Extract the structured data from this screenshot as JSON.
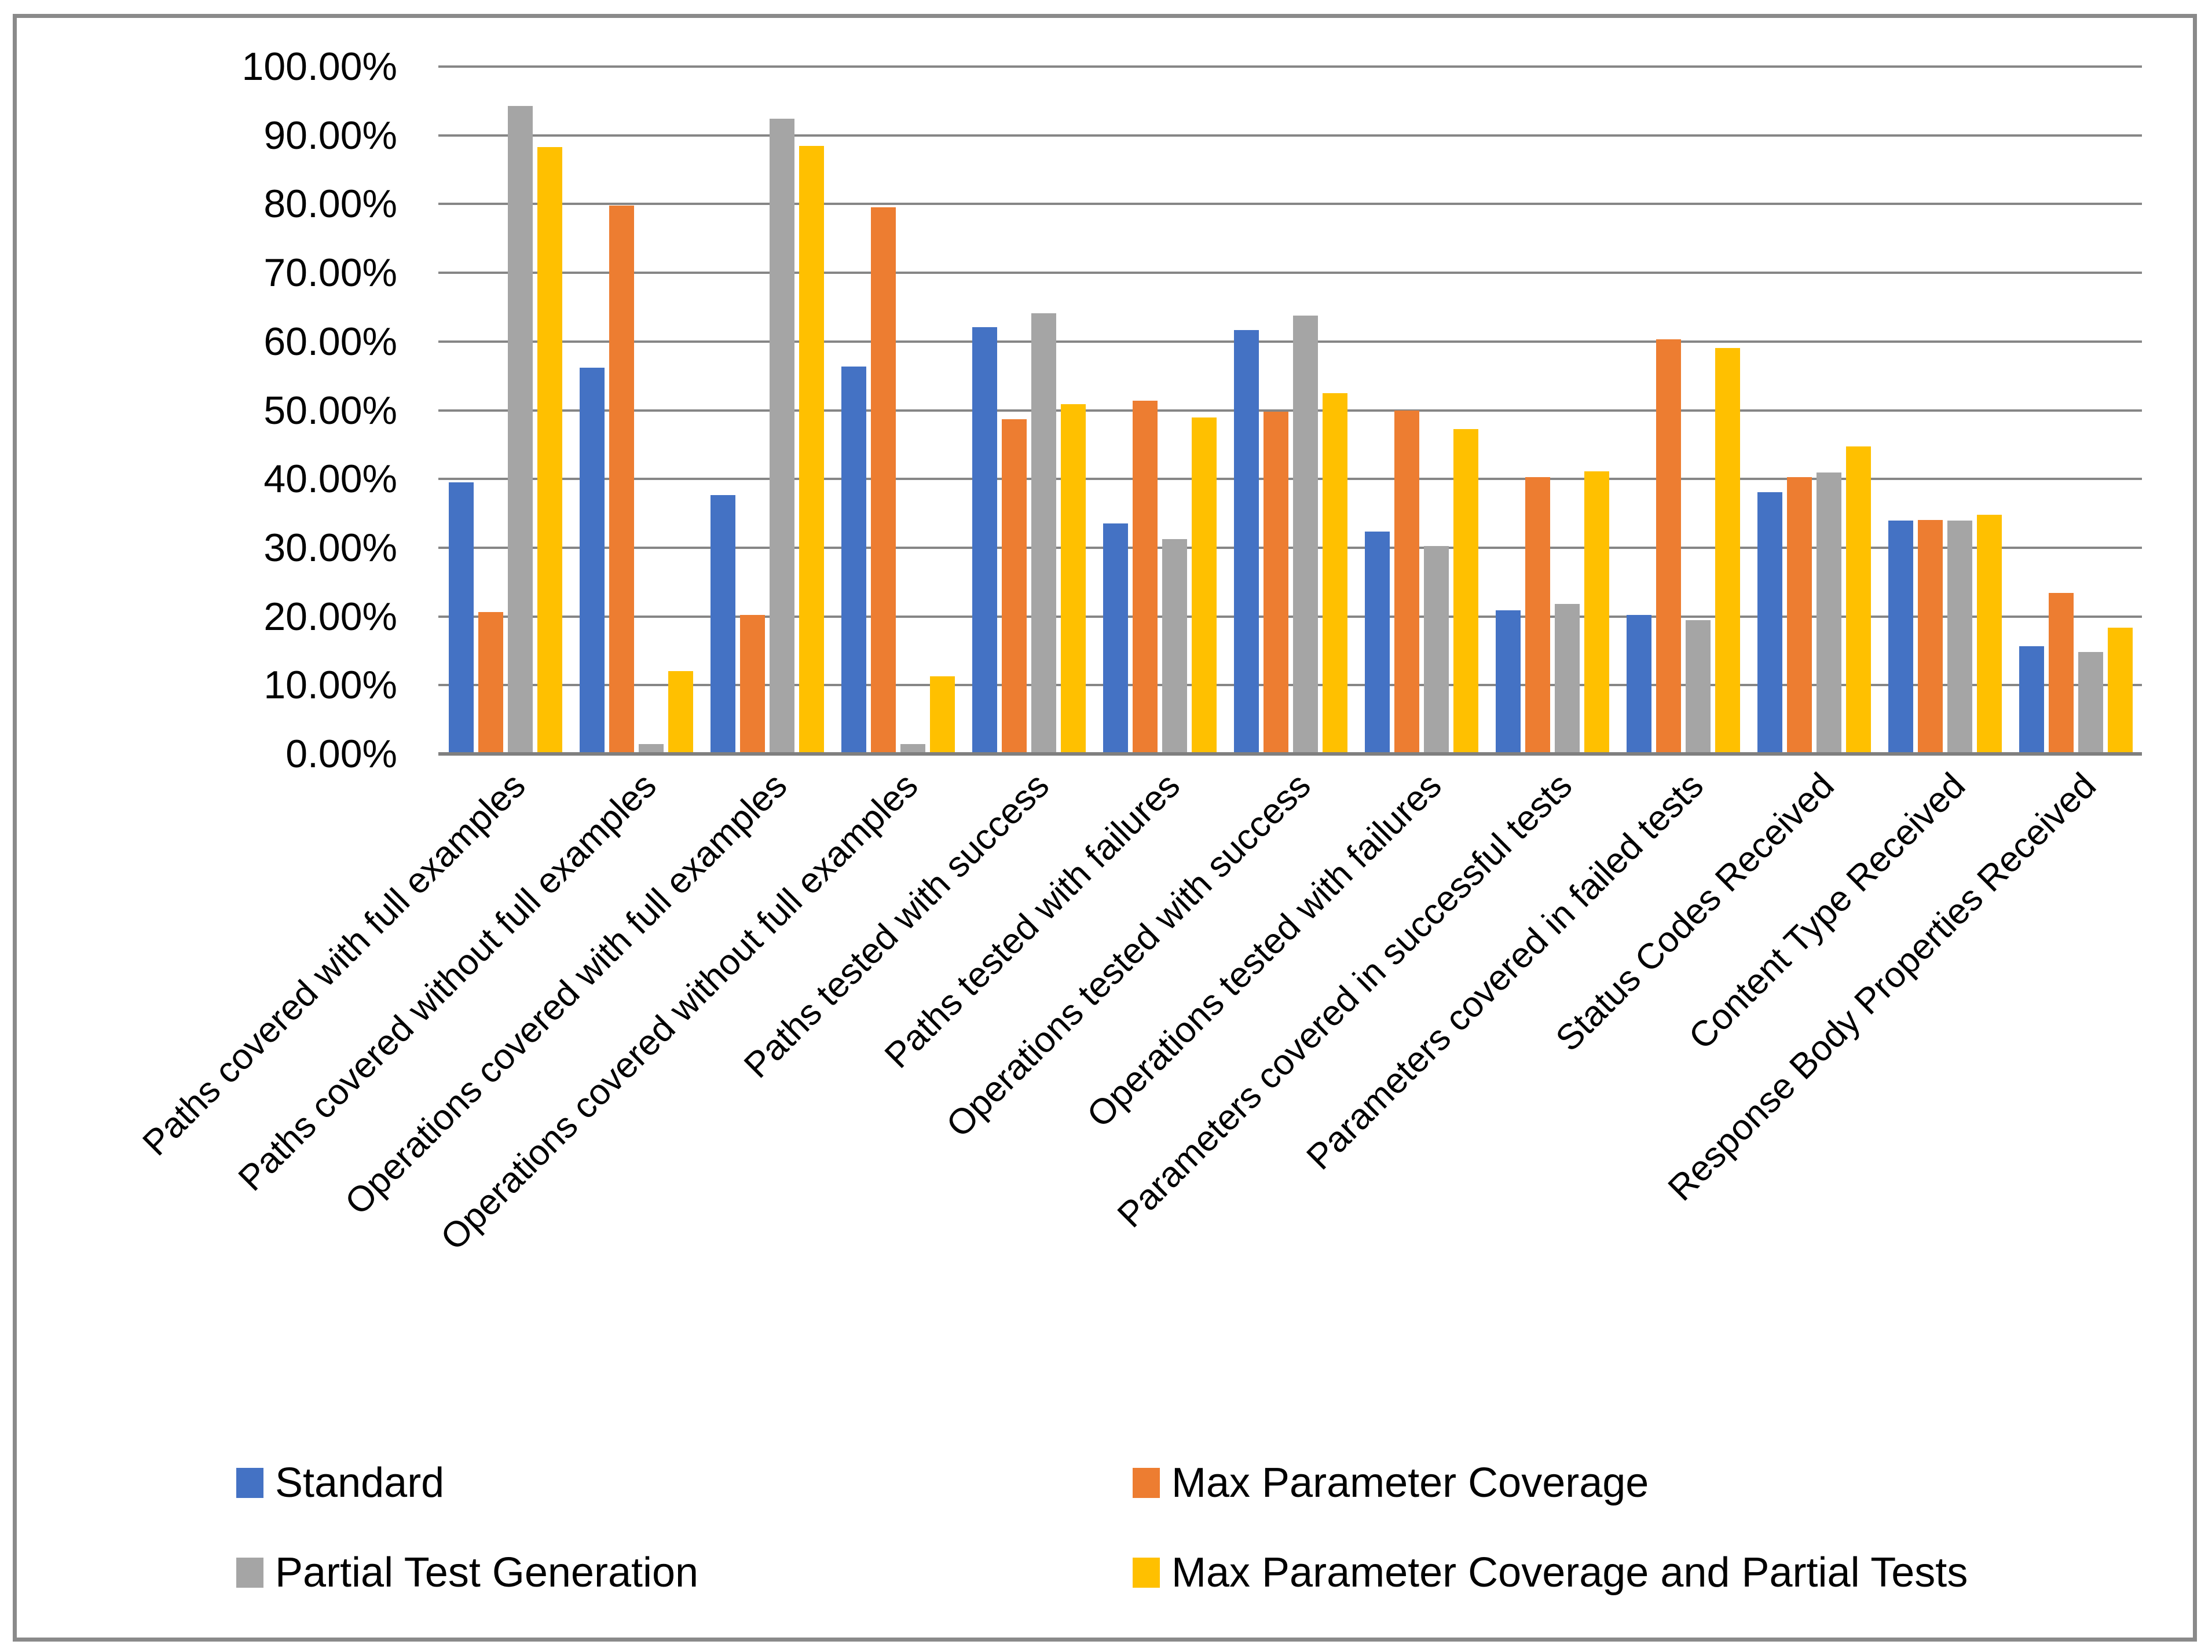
{
  "figure": {
    "background_color": "#ffffff",
    "border_color": "#8a8a8a",
    "gridline_color": "#868686",
    "axis_line_color": "#7f7f7f",
    "text_color": "#000000"
  },
  "chart_data": {
    "type": "bar",
    "title": "",
    "xlabel": "",
    "ylabel": "",
    "grid": true,
    "legend_position": "bottom",
    "y_axis": {
      "min": 0,
      "max": 100,
      "step": 10,
      "unit": "%",
      "tick_labels": [
        "0.00%",
        "10.00%",
        "20.00%",
        "30.00%",
        "40.00%",
        "50.00%",
        "60.00%",
        "70.00%",
        "80.00%",
        "90.00%",
        "100.00%"
      ]
    },
    "categories": [
      "Paths covered with full examples",
      "Paths covered without full examples",
      "Operations covered with full examples",
      "Operations covered without full examples",
      "Paths tested with success",
      "Paths tested with failures",
      "Operations tested with success",
      "Operations tested with failures",
      "Parameters covered in successful tests",
      "Parameters covered in failed tests",
      "Status Codes Received",
      "Content Type Received",
      "Response Body Properties Received"
    ],
    "series": [
      {
        "name": "Standard",
        "color": "#4472C4",
        "values": [
          39.3,
          55.9,
          37.4,
          56.1,
          61.8,
          33.3,
          61.4,
          32.1,
          20.6,
          20.0,
          37.8,
          33.7,
          15.4
        ]
      },
      {
        "name": "Max Parameter Coverage",
        "color": "#ED7D31",
        "values": [
          20.4,
          79.5,
          20.0,
          79.3,
          48.4,
          51.1,
          49.5,
          49.7,
          40.0,
          60.1,
          40.0,
          33.8,
          23.2
        ]
      },
      {
        "name": "Partial Test Generation",
        "color": "#A5A5A5",
        "values": [
          94.0,
          1.2,
          92.2,
          1.2,
          63.9,
          31.0,
          63.5,
          30.0,
          21.6,
          19.2,
          40.7,
          33.7,
          14.6
        ]
      },
      {
        "name": "Max Parameter Coverage and Partial Tests",
        "color": "#FFC000",
        "values": [
          88.0,
          11.8,
          88.2,
          11.0,
          50.6,
          48.7,
          52.2,
          47.0,
          40.9,
          58.8,
          44.5,
          34.5,
          18.1
        ]
      }
    ]
  }
}
